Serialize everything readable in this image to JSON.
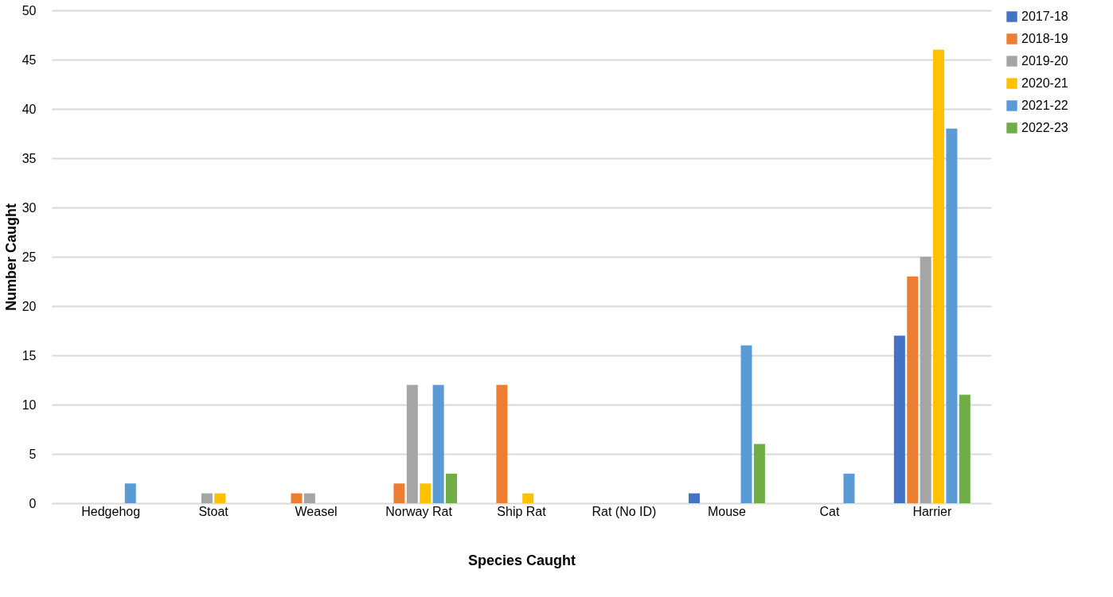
{
  "chart_data": {
    "type": "bar",
    "xlabel": "Species Caught",
    "ylabel": "Number Caught",
    "categories": [
      "Hedgehog",
      "Stoat",
      "Weasel",
      "Norway Rat",
      "Ship Rat",
      "Rat (No ID)",
      "Mouse",
      "Cat",
      "Harrier"
    ],
    "series": [
      {
        "name": "2017-18",
        "color": "#4472c4",
        "values": [
          null,
          null,
          null,
          null,
          null,
          null,
          1,
          null,
          17
        ]
      },
      {
        "name": "2018-19",
        "color": "#ed7d31",
        "values": [
          null,
          null,
          1,
          2,
          12,
          null,
          null,
          null,
          23
        ]
      },
      {
        "name": "2019-20",
        "color": "#a5a5a5",
        "values": [
          null,
          1,
          1,
          12,
          null,
          null,
          null,
          null,
          25
        ]
      },
      {
        "name": "2020-21",
        "color": "#ffc000",
        "values": [
          null,
          1,
          null,
          2,
          1,
          null,
          null,
          null,
          46
        ]
      },
      {
        "name": "2021-22",
        "color": "#5b9bd5",
        "values": [
          2,
          null,
          null,
          12,
          null,
          null,
          16,
          3,
          38
        ]
      },
      {
        "name": "2022-23",
        "color": "#70ad47",
        "values": [
          null,
          null,
          null,
          3,
          null,
          null,
          6,
          null,
          11
        ]
      }
    ],
    "ylim": [
      0,
      50
    ],
    "yticks": [
      0,
      5,
      10,
      15,
      20,
      25,
      30,
      35,
      40,
      45,
      50
    ],
    "grid": "y",
    "legend": "right"
  }
}
